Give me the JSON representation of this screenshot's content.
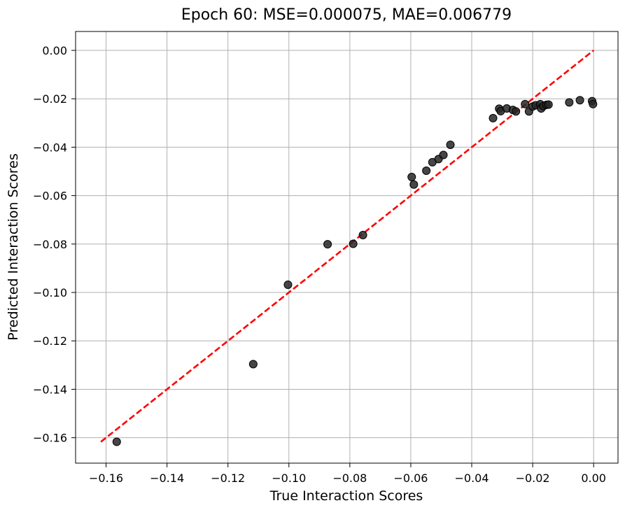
{
  "chart_data": {
    "type": "scatter",
    "title": "Epoch 60: MSE=0.000075, MAE=0.006779",
    "xlabel": "True Interaction Scores",
    "ylabel": "Predicted Interaction Scores",
    "xlim": [
      -0.17,
      0.008
    ],
    "ylim": [
      -0.1705,
      0.0078
    ],
    "x_ticks": [
      -0.16,
      -0.14,
      -0.12,
      -0.1,
      -0.08,
      -0.06,
      -0.04,
      -0.02,
      0.0
    ],
    "x_tick_labels": [
      "−0.16",
      "−0.14",
      "−0.12",
      "−0.10",
      "−0.08",
      "−0.06",
      "−0.04",
      "−0.02",
      "0.00"
    ],
    "y_ticks": [
      0.0,
      -0.02,
      -0.04,
      -0.06,
      -0.08,
      -0.1,
      -0.12,
      -0.14,
      -0.16
    ],
    "y_tick_labels": [
      "0.00",
      "−0.02",
      "−0.04",
      "−0.06",
      "−0.08",
      "−0.10",
      "−0.12",
      "−0.14",
      "−0.16"
    ],
    "grid": true,
    "reference_line": {
      "x": [
        -0.1617,
        0.0
      ],
      "y": [
        -0.1617,
        0.0
      ],
      "color": "#ff0000",
      "style": "dashed"
    },
    "marker_color": "#262626",
    "points": [
      {
        "x": -0.1565,
        "y": -0.1617
      },
      {
        "x": -0.1117,
        "y": -0.1296
      },
      {
        "x": -0.1003,
        "y": -0.0968
      },
      {
        "x": -0.0873,
        "y": -0.0801
      },
      {
        "x": -0.0789,
        "y": -0.0799
      },
      {
        "x": -0.0757,
        "y": -0.0763
      },
      {
        "x": -0.0597,
        "y": -0.0523
      },
      {
        "x": -0.059,
        "y": -0.0554
      },
      {
        "x": -0.0549,
        "y": -0.0497
      },
      {
        "x": -0.0529,
        "y": -0.0462
      },
      {
        "x": -0.0509,
        "y": -0.0449
      },
      {
        "x": -0.0493,
        "y": -0.0432
      },
      {
        "x": -0.047,
        "y": -0.039
      },
      {
        "x": -0.033,
        "y": -0.028
      },
      {
        "x": -0.031,
        "y": -0.0241
      },
      {
        "x": -0.0305,
        "y": -0.0251
      },
      {
        "x": -0.0285,
        "y": -0.024
      },
      {
        "x": -0.0265,
        "y": -0.0246
      },
      {
        "x": -0.0255,
        "y": -0.0252
      },
      {
        "x": -0.0225,
        "y": -0.0222
      },
      {
        "x": -0.0212,
        "y": -0.0252
      },
      {
        "x": -0.02,
        "y": -0.0232
      },
      {
        "x": -0.019,
        "y": -0.0227
      },
      {
        "x": -0.0175,
        "y": -0.0222
      },
      {
        "x": -0.0172,
        "y": -0.024
      },
      {
        "x": -0.0165,
        "y": -0.023
      },
      {
        "x": -0.0155,
        "y": -0.0225
      },
      {
        "x": -0.0148,
        "y": -0.0224
      },
      {
        "x": -0.008,
        "y": -0.0215
      },
      {
        "x": -0.0045,
        "y": -0.0206
      },
      {
        "x": -0.0005,
        "y": -0.021
      },
      {
        "x": -0.0002,
        "y": -0.0222
      }
    ]
  }
}
